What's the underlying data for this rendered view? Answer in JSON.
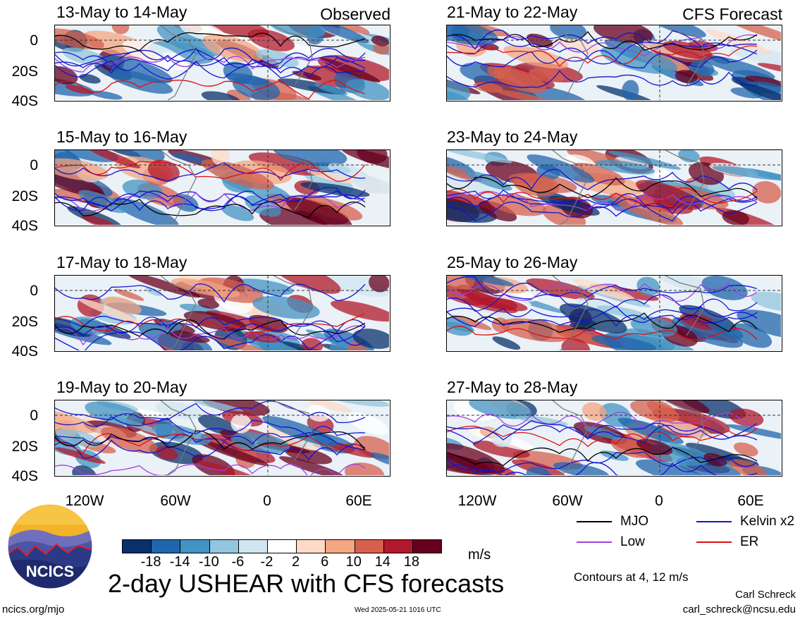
{
  "header": {
    "obs_tag": "Observed",
    "fcst_tag": "CFS Forecast"
  },
  "panels_left": [
    {
      "title": "13-May to 14-May"
    },
    {
      "title": "15-May to 16-May"
    },
    {
      "title": "17-May to 18-May"
    },
    {
      "title": "19-May to 20-May"
    }
  ],
  "panels_right": [
    {
      "title": "21-May to 22-May"
    },
    {
      "title": "23-May to 24-May"
    },
    {
      "title": "25-May to 26-May"
    },
    {
      "title": "27-May to 28-May"
    }
  ],
  "axes": {
    "y_ticks": [
      "0",
      "20S",
      "40S"
    ],
    "x_ticks": [
      "120W",
      "60W",
      "0",
      "60E"
    ]
  },
  "legend": {
    "mjo": "MJO",
    "kelvin": "Kelvin x2",
    "low": "Low",
    "er": "ER",
    "colors": {
      "mjo": "#000000",
      "kelvin": "#1414d2",
      "low": "#a040e0",
      "er": "#e01010"
    }
  },
  "colorbar": {
    "unit": "m/s",
    "labels": [
      "-18",
      "-14",
      "-10",
      "-6",
      "-2",
      "2",
      "6",
      "10",
      "14",
      "18"
    ],
    "colors": [
      "#08306b",
      "#2166ac",
      "#4393c3",
      "#92c5de",
      "#d1e5f0",
      "#ffffff",
      "#fddbc7",
      "#f4a582",
      "#d6604d",
      "#b2182b",
      "#67001f"
    ]
  },
  "footer": {
    "main_title": "2-day USHEAR with CFS forecasts",
    "contours_note": "Contours at 4, 12 m/s",
    "author": "Carl Schreck",
    "email": "carl_schreck@ncsu.edu",
    "url": "ncics.org/mjo",
    "timestamp": "Wed 2025-05-21 1016 UTC",
    "logo_text": "NCICS"
  },
  "chart_data": {
    "type": "heatmap",
    "variable": "2-day USHEAR",
    "unit": "m/s",
    "contour_levels": [
      4,
      12
    ],
    "series": [
      {
        "name": "MJO"
      },
      {
        "name": "Kelvin x2"
      },
      {
        "name": "Low"
      },
      {
        "name": "ER"
      }
    ],
    "x_ticks": [
      "120W",
      "60W",
      "0",
      "60E"
    ],
    "y_ticks": [
      "0",
      "20S",
      "40S"
    ],
    "color_levels": [
      -18,
      -14,
      -10,
      -6,
      -2,
      2,
      6,
      10,
      14,
      18
    ]
  }
}
